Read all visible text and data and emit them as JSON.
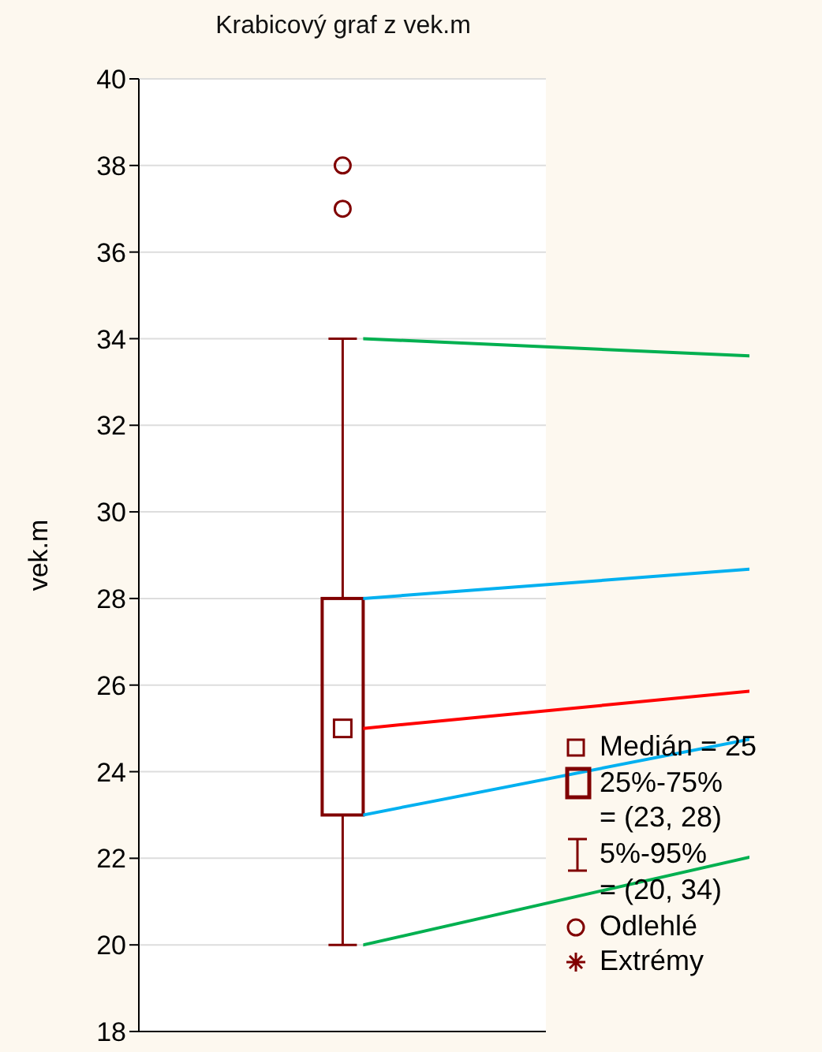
{
  "chart_data": {
    "type": "box",
    "title": "Krabicový graf z vek.m",
    "ylabel": "vek.m",
    "categories": [
      null
    ],
    "boxes": [
      {
        "low": 20,
        "q1": 23,
        "median": 25,
        "q3": 28,
        "high": 34,
        "outliers": [
          37,
          38
        ]
      }
    ],
    "color": "#800000",
    "ylim": [
      18,
      40
    ],
    "yticks": [
      18,
      20,
      22,
      24,
      26,
      28,
      30,
      32,
      34,
      36,
      38,
      40
    ],
    "grid": "y",
    "annotations": [
      "Medián = 25",
      "25%-75%",
      "= (23, 28)",
      "5%-95%",
      "= (20, 34)",
      "Odlehlé",
      "Extrémy"
    ]
  }
}
